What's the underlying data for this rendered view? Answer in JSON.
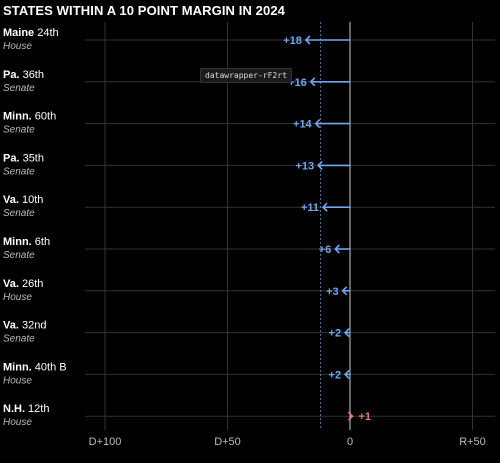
{
  "title": "STATES WITHIN A 10 POINT MARGIN IN 2024",
  "tooltip": "datawrapper-rF2rt",
  "colors": {
    "dem": "#6ea8f0",
    "rep": "#f07a6a",
    "grid": "#333333",
    "zero": "#c8c8c8",
    "label": "#ffffff",
    "sublabel": "#bbbbbb",
    "tick": "#bbbbbb"
  },
  "chart_data": {
    "type": "arrow",
    "title": "STATES WITHIN A 10 POINT MARGIN IN 2024",
    "xlim": [
      -100,
      50
    ],
    "x_ticks": [
      -100,
      -50,
      0,
      50
    ],
    "x_tick_labels": [
      "D+100",
      "D+50",
      "0",
      "R+50"
    ],
    "reference_line": -12,
    "rows": [
      {
        "state": "Maine",
        "district": "24th",
        "chamber": "House",
        "label": "+18",
        "value": -18,
        "party": "D"
      },
      {
        "state": "Pa.",
        "district": "36th",
        "chamber": "Senate",
        "label": "+16",
        "value": -16,
        "party": "D"
      },
      {
        "state": "Minn.",
        "district": "60th",
        "chamber": "Senate",
        "label": "+14",
        "value": -14,
        "party": "D"
      },
      {
        "state": "Pa.",
        "district": "35th",
        "chamber": "Senate",
        "label": "+13",
        "value": -13,
        "party": "D"
      },
      {
        "state": "Va.",
        "district": "10th",
        "chamber": "Senate",
        "label": "+11",
        "value": -11,
        "party": "D"
      },
      {
        "state": "Minn.",
        "district": "6th",
        "chamber": "Senate",
        "label": "+6",
        "value": -6,
        "party": "D"
      },
      {
        "state": "Va.",
        "district": "26th",
        "chamber": "House",
        "label": "+3",
        "value": -3,
        "party": "D"
      },
      {
        "state": "Va.",
        "district": "32nd",
        "chamber": "Senate",
        "label": "+2",
        "value": -2,
        "party": "D"
      },
      {
        "state": "Minn.",
        "district": "40th B",
        "chamber": "House",
        "label": "+2",
        "value": -2,
        "party": "D"
      },
      {
        "state": "N.H.",
        "district": "12th",
        "chamber": "House",
        "label": "+1",
        "value": 1,
        "party": "R"
      }
    ]
  }
}
